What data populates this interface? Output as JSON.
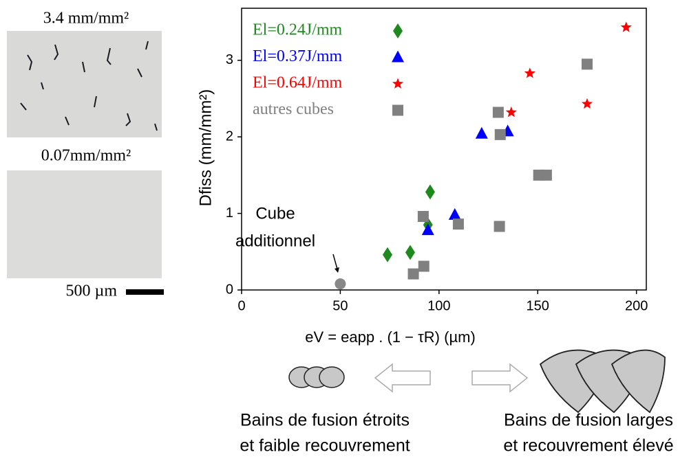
{
  "chart_data": {
    "type": "scatter",
    "xlabel": "eV = eapp . (1 − τR) (µm)",
    "ylabel": "Dfiss (mm/mm²)",
    "xlim": [
      0,
      205
    ],
    "ylim": [
      0,
      3.68
    ],
    "xticks": [
      0,
      50,
      100,
      150,
      200
    ],
    "yticks": [
      0,
      1,
      2,
      3
    ],
    "legend": "upper left",
    "series": [
      {
        "name": "El=0.24J/mm",
        "color": "#1e8a1e",
        "marker": "diamond",
        "x": [
          73.9,
          85.4,
          94.4,
          95.5
        ],
        "values": [
          0.46,
          0.49,
          0.85,
          1.28
        ]
      },
      {
        "name": "El=0.37J/mm",
        "color": "#0000ff",
        "marker": "triangle",
        "x": [
          94.4,
          108,
          121.6,
          134.8
        ],
        "values": [
          0.78,
          0.98,
          2.04,
          2.07
        ]
      },
      {
        "name": "El=0.64J/mm",
        "color": "#ff0000",
        "marker": "star",
        "x": [
          136.6,
          146,
          175,
          194.8
        ],
        "values": [
          2.32,
          2.83,
          2.43,
          3.43
        ]
      },
      {
        "name": "autres cubes",
        "color": "#808080",
        "marker": "square",
        "x": [
          87,
          92.3,
          92,
          109.8,
          130,
          131,
          130.6,
          150.5,
          154.4,
          175
        ],
        "values": [
          0.21,
          0.31,
          0.96,
          0.86,
          2.32,
          2.03,
          0.83,
          1.5,
          1.5,
          2.95
        ]
      }
    ],
    "annotated_point": {
      "x": 50,
      "y": 0.08,
      "color": "#888888",
      "label": [
        "Cube",
        "additionnel"
      ]
    }
  },
  "micrographs": [
    "3.4 mm/mm²",
    "0.07mm/mm²"
  ],
  "scale_bar": "500 µm",
  "diagram": {
    "left": [
      "Bains de fusion étroits",
      "et faible recouvrement"
    ],
    "right": [
      "Bains de fusion larges",
      "et recouvrement élevé"
    ]
  }
}
